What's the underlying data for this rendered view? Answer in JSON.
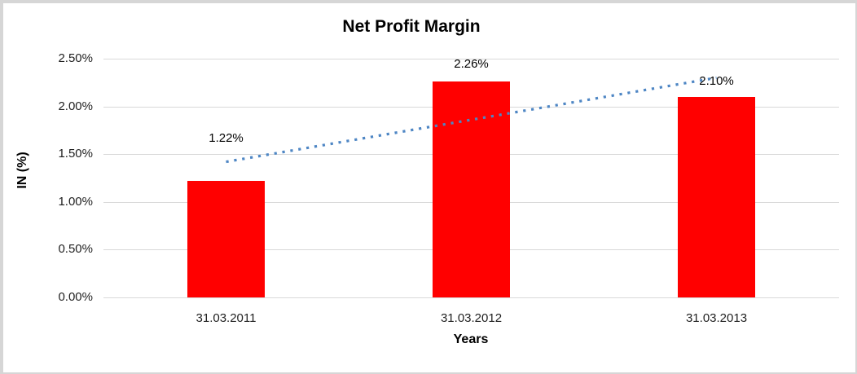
{
  "window": {
    "background": "#ffffff",
    "frame_border_color": "#d6d6d6"
  },
  "chart_data": {
    "type": "bar",
    "title": "Net Profit Margin",
    "xlabel": "Years",
    "ylabel": "IN (%)",
    "categories": [
      "31.03.2011",
      "31.03.2012",
      "31.03.2013"
    ],
    "values": [
      1.22,
      2.26,
      2.1
    ],
    "data_labels": [
      "1.22%",
      "2.26%",
      "2.10%"
    ],
    "ylim": [
      0,
      2.5
    ],
    "ytick_step": 0.5,
    "ytick_labels": [
      "0.00%",
      "0.50%",
      "1.00%",
      "1.50%",
      "2.00%",
      "2.50%"
    ],
    "grid": true,
    "legend": "none",
    "colors": {
      "bar": "#ff0000",
      "gridline": "#d9d9d9",
      "trendline": "#4e86c4",
      "text": "#1f1f1f",
      "title_text": "#000000"
    },
    "trendline": {
      "type": "linear",
      "style": "dotted",
      "color": "#4e86c4",
      "fitted_values": [
        1.42,
        1.86,
        2.3
      ]
    }
  }
}
